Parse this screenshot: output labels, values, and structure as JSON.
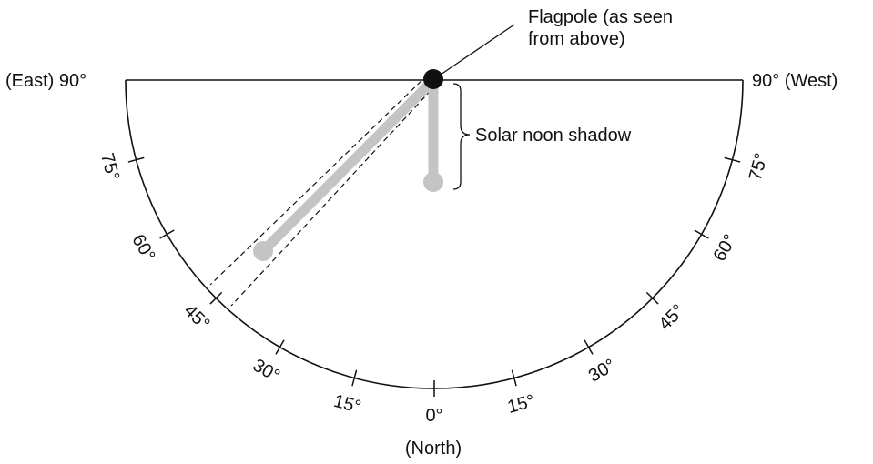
{
  "diagram": {
    "flagpole_label_line1": "Flagpole (as seen",
    "flagpole_label_line2": "from above)",
    "solar_noon_label": "Solar noon shadow",
    "east_label": "(East) 90°",
    "west_label": "90° (West)",
    "north_label": "(North)",
    "left_ticks": [
      {
        "deg": 75,
        "label": "75°"
      },
      {
        "deg": 60,
        "label": "60°"
      },
      {
        "deg": 45,
        "label": "45°"
      },
      {
        "deg": 30,
        "label": "30°"
      },
      {
        "deg": 15,
        "label": "15°"
      }
    ],
    "bottom_tick": {
      "deg": 0,
      "label": "0°"
    },
    "right_ticks": [
      {
        "deg": 15,
        "label": "15°"
      },
      {
        "deg": 30,
        "label": "30°"
      },
      {
        "deg": 45,
        "label": "45°"
      },
      {
        "deg": 60,
        "label": "60°"
      },
      {
        "deg": 75,
        "label": "75°"
      }
    ],
    "colors": {
      "line": "#111111",
      "shadow": "#c4c4c4",
      "pole": "#111111"
    }
  }
}
